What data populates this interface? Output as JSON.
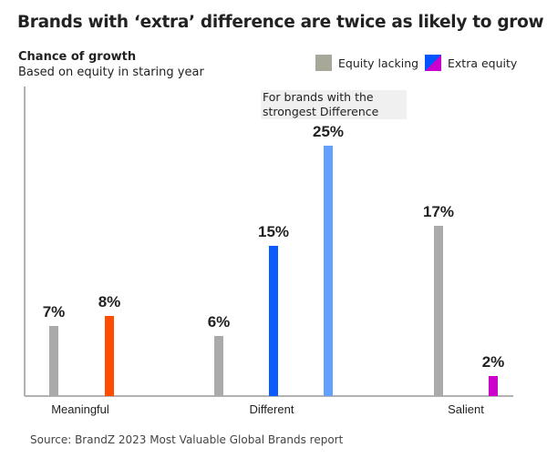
{
  "chart_data": {
    "type": "bar",
    "title": "Brands with ‘extra’ difference are twice as likely to grow",
    "subtitle": "Chance of growth",
    "subtitle2": "Based on equity in staring year",
    "categories": [
      "Meaningful",
      "Different",
      "Salient"
    ],
    "legend": [
      {
        "label": "Equity lacking",
        "color": "#a8a89a"
      },
      {
        "label": "Extra equity",
        "colors": [
          "#0055ff",
          "#cc00cc"
        ]
      }
    ],
    "bars": [
      {
        "category": "Meaningful",
        "series": "Equity lacking",
        "value": 7,
        "label": "7%",
        "color": "#aaaaaa"
      },
      {
        "category": "Meaningful",
        "series": "Extra equity",
        "value": 8,
        "label": "8%",
        "color": "#ff4d00"
      },
      {
        "category": "Different",
        "series": "Equity lacking",
        "value": 6,
        "label": "6%",
        "color": "#aaaaaa"
      },
      {
        "category": "Different",
        "series": "Extra equity",
        "value": 15,
        "label": "15%",
        "color": "#0a5cff"
      },
      {
        "category": "Different",
        "series": "Extra equity (strongest Difference)",
        "value": 25,
        "label": "25%",
        "color": "#66a0ff"
      },
      {
        "category": "Salient",
        "series": "Equity lacking",
        "value": 17,
        "label": "17%",
        "color": "#aaaaaa"
      },
      {
        "category": "Salient",
        "series": "Extra equity",
        "value": 2,
        "label": "2%",
        "color": "#cc00cc"
      }
    ],
    "annotation": "For brands with the strongest Difference",
    "ylim": [
      0,
      25
    ],
    "grid": false,
    "legend_position": "top-right",
    "source": "Source:  BrandZ 2023 Most Valuable Global Brands report"
  }
}
